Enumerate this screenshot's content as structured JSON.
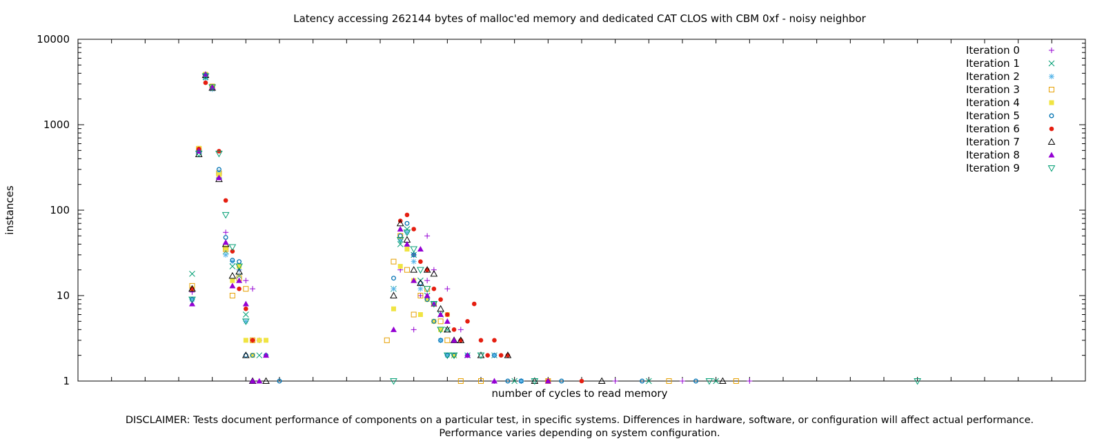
{
  "footer": {
    "line1": "DISCLAIMER: Tests document performance of components on a particular test, in specific systems.  Differences in hardware, software, or configuration will affect actual performance.",
    "line2": "Performance varies depending on system configuration."
  },
  "chart_data": {
    "type": "scatter",
    "title": "Latency accessing 262144 bytes of malloc'ed memory and dedicated CAT CLOS with CBM 0xf - noisy neighbor",
    "xlabel": "number of cycles to read memory",
    "ylabel": "instances",
    "x_tick_labels_shown": false,
    "y_scale": "log",
    "ylim": [
      1,
      10000
    ],
    "y_ticks": [
      1,
      10,
      100,
      1000,
      10000
    ],
    "y_tick_labels": [
      "1",
      "10",
      "100",
      "1000",
      "10000"
    ],
    "xlim": [
      0,
      150
    ],
    "legend_position": "top-right",
    "grid": false,
    "series": [
      {
        "name": "Iteration 0",
        "marker": "plus",
        "color": "#9400d3",
        "x": [
          17,
          18,
          19,
          20,
          21,
          22,
          24,
          25,
          26,
          27,
          26,
          48,
          50,
          52,
          53,
          55,
          57,
          50,
          51,
          52,
          53,
          57,
          58,
          62,
          66,
          80,
          90,
          100
        ],
        "y": [
          11,
          500,
          3700,
          2700,
          240,
          55,
          20,
          15,
          12,
          3,
          1,
          20,
          30,
          50,
          20,
          12,
          4,
          4,
          10,
          15,
          8,
          3,
          2,
          1,
          1,
          1,
          1,
          1
        ]
      },
      {
        "name": "Iteration 1",
        "marker": "x",
        "color": "#009e73",
        "x": [
          17,
          18,
          19,
          20,
          21,
          22,
          23,
          24,
          25,
          27,
          47,
          48,
          49,
          50,
          51,
          52,
          53,
          54,
          55,
          56,
          58,
          62,
          65,
          85,
          95
        ],
        "y": [
          18,
          480,
          3600,
          2700,
          250,
          33,
          22,
          17,
          6,
          2,
          12,
          40,
          60,
          30,
          15,
          10,
          8,
          6,
          4,
          2,
          2,
          2,
          1,
          1,
          1
        ]
      },
      {
        "name": "Iteration 2",
        "marker": "star",
        "color": "#56b4e9",
        "x": [
          17,
          18,
          19,
          20,
          21,
          22,
          23,
          24,
          25,
          47,
          48,
          49,
          50,
          51,
          52,
          53,
          54,
          55,
          56,
          62,
          66
        ],
        "y": [
          9,
          490,
          3500,
          2600,
          280,
          30,
          25,
          20,
          5,
          12,
          45,
          55,
          25,
          12,
          9,
          5,
          3,
          2,
          2,
          2,
          1
        ]
      },
      {
        "name": "Iteration 3",
        "marker": "square-open",
        "color": "#e69f00",
        "x": [
          17,
          18,
          19,
          20,
          21,
          22,
          23,
          24,
          25,
          26,
          46,
          47,
          48,
          49,
          50,
          51,
          52,
          53,
          54,
          55,
          57,
          60,
          70,
          88,
          98
        ],
        "y": [
          13,
          520,
          3800,
          2800,
          270,
          35,
          10,
          16,
          12,
          3,
          3,
          25,
          50,
          20,
          6,
          10,
          12,
          8,
          5,
          3,
          1,
          1,
          1,
          1,
          1
        ]
      },
      {
        "name": "Iteration 4",
        "marker": "square-filled",
        "color": "#f0e442",
        "x": [
          17,
          18,
          19,
          20,
          21,
          22,
          23,
          24,
          25,
          26,
          27,
          28,
          47,
          48,
          49,
          50,
          51,
          52,
          53,
          54,
          55,
          56
        ],
        "y": [
          12,
          530,
          3900,
          2750,
          260,
          36,
          15,
          22,
          3,
          2,
          3,
          3,
          7,
          22,
          35,
          15,
          6,
          9,
          5,
          4,
          6,
          2
        ]
      },
      {
        "name": "Iteration 5",
        "marker": "circle-open",
        "color": "#0072b2",
        "x": [
          17,
          18,
          19,
          20,
          21,
          22,
          23,
          24,
          25,
          26,
          28,
          30,
          47,
          48,
          49,
          50,
          51,
          52,
          53,
          54,
          55,
          56,
          58,
          62,
          64,
          66,
          72,
          84,
          92
        ],
        "y": [
          9,
          500,
          3850,
          2700,
          300,
          48,
          26,
          25,
          2,
          2,
          2,
          1,
          16,
          50,
          70,
          30,
          14,
          9,
          5,
          3,
          2,
          2,
          2,
          2,
          1,
          1,
          1,
          1,
          1
        ]
      },
      {
        "name": "Iteration 6",
        "marker": "circle-filled",
        "color": "#e51e10",
        "x": [
          17,
          18,
          19,
          20,
          21,
          22,
          23,
          24,
          25,
          26,
          48,
          49,
          50,
          51,
          52,
          53,
          54,
          55,
          56,
          57,
          58,
          59,
          60,
          61,
          62,
          63,
          64,
          70,
          75
        ],
        "y": [
          12,
          520,
          3100,
          2700,
          490,
          130,
          33,
          12,
          7,
          3,
          75,
          88,
          60,
          25,
          20,
          12,
          9,
          6,
          4,
          3,
          5,
          8,
          3,
          2,
          3,
          2,
          2,
          1,
          1
        ]
      },
      {
        "name": "Iteration 7",
        "marker": "triangle-up-open",
        "color": "#000000",
        "x": [
          17,
          18,
          19,
          20,
          21,
          22,
          23,
          24,
          25,
          26,
          28,
          47,
          48,
          49,
          50,
          51,
          52,
          53,
          54,
          55,
          56,
          57,
          60,
          64,
          68,
          78,
          96
        ],
        "y": [
          12,
          450,
          3800,
          2700,
          230,
          40,
          17,
          19,
          2,
          1,
          1,
          10,
          70,
          45,
          20,
          14,
          20,
          18,
          7,
          4,
          3,
          3,
          2,
          2,
          1,
          1,
          1
        ]
      },
      {
        "name": "Iteration 8",
        "marker": "triangle-up-filled",
        "color": "#9400d3",
        "x": [
          17,
          18,
          19,
          20,
          21,
          22,
          23,
          24,
          25,
          26,
          27,
          28,
          47,
          48,
          49,
          50,
          51,
          52,
          53,
          54,
          55,
          56,
          58,
          62,
          70
        ],
        "y": [
          8,
          490,
          3900,
          2750,
          240,
          42,
          13,
          15,
          8,
          1,
          1,
          2,
          4,
          60,
          40,
          15,
          35,
          10,
          8,
          6,
          5,
          3,
          2,
          1,
          1
        ]
      },
      {
        "name": "Iteration 9",
        "marker": "triangle-down-open",
        "color": "#009e73",
        "x": [
          17,
          18,
          19,
          20,
          21,
          22,
          23,
          24,
          25,
          47,
          48,
          49,
          50,
          51,
          52,
          53,
          54,
          55,
          56,
          60,
          68,
          94,
          125
        ],
        "y": [
          9,
          460,
          3700,
          2750,
          460,
          88,
          37,
          22,
          5,
          1,
          45,
          55,
          35,
          20,
          12,
          8,
          4,
          2,
          2,
          2,
          1,
          1,
          1
        ]
      }
    ]
  }
}
